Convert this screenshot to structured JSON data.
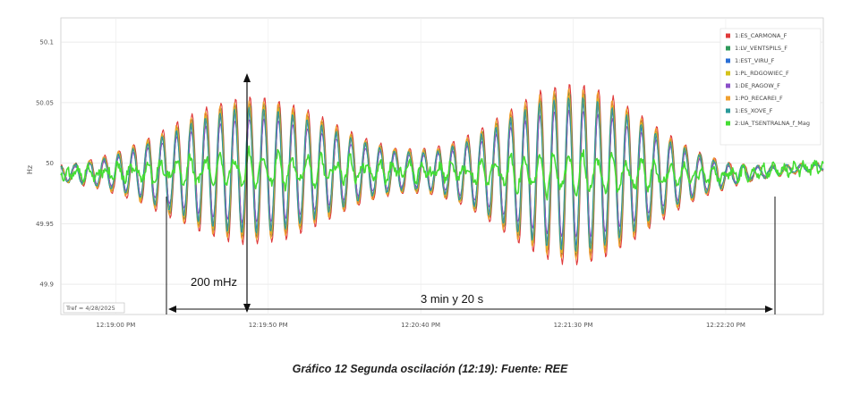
{
  "caption": "Gráfico 12 Segunda oscilación (12:19): Fuente: REE",
  "chart_data": {
    "type": "line",
    "ylabel": "Hz",
    "ylim": [
      49.875,
      50.12
    ],
    "y_ticks": [
      {
        "value": 50.1,
        "label": "50.1"
      },
      {
        "value": 50.05,
        "label": "50.05"
      },
      {
        "value": 50.0,
        "label": "50"
      },
      {
        "value": 49.95,
        "label": "49.95"
      },
      {
        "value": 49.9,
        "label": "49.9"
      }
    ],
    "x_ticks": [
      "12:19:00 PM",
      "12:19:50 PM",
      "12:20:40 PM",
      "12:21:30 PM",
      "12:22:20 PM"
    ],
    "grid": true,
    "legend_position": "top-right",
    "tref_label": "Tref = 4/28/2025",
    "series": [
      {
        "name": "1:ES_CARMONA_F",
        "color": "#e03a3a",
        "gain": 1.0
      },
      {
        "name": "1:LV_VENTSPILS_F",
        "color": "#2f9a5a",
        "gain": 0.9
      },
      {
        "name": "1:EST_VIRU_F",
        "color": "#2a6fd6",
        "gain": 0.8
      },
      {
        "name": "1:PL_RDGOWIEC_F",
        "color": "#d4c21a",
        "gain": 0.88
      },
      {
        "name": "1:DE_RAGOW_F",
        "color": "#8a4fc8",
        "gain": 0.7
      },
      {
        "name": "1:PO_RECAREI_F",
        "color": "#f0a030",
        "gain": 0.95
      },
      {
        "name": "1:ES_XOVE_F",
        "color": "#2a9a9a",
        "gain": 0.85
      },
      {
        "name": "2:UA_TSENTRALNA_f_Mag",
        "color": "#44dd33",
        "gain": 0.2
      }
    ],
    "annotations": {
      "amplitude": "200 mHz",
      "duration": "3 min y 20 s"
    }
  }
}
